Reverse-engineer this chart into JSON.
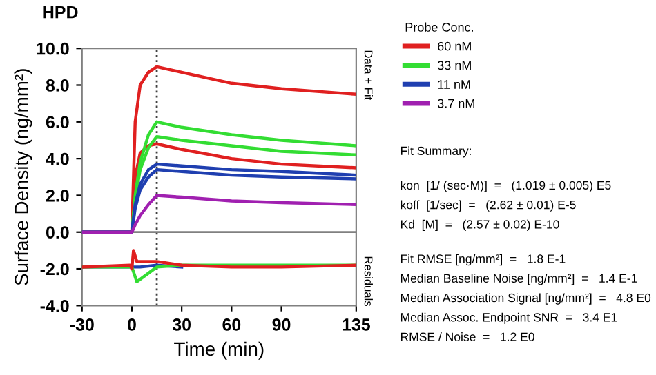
{
  "chart_data": {
    "type": "line",
    "title": "HPD",
    "xlabel": "Time (min)",
    "ylabel": "Surface Density (ng/mm²)",
    "legend_title": "Probe Conc.",
    "legend": "right",
    "grid": false,
    "marker": "none",
    "line_style": "solid",
    "xlim": [
      -30,
      135
    ],
    "xticks": [
      -30,
      0,
      30,
      60,
      90,
      135
    ],
    "ylim": [
      -4,
      10
    ],
    "yticks": [
      {
        "value": -4,
        "label": "-4.0"
      },
      {
        "value": -2,
        "label": "-2.0"
      },
      {
        "value": 0,
        "label": "0.0"
      },
      {
        "value": 2,
        "label": "2.0"
      },
      {
        "value": 4,
        "label": "4.0"
      },
      {
        "value": 6,
        "label": "6.0"
      },
      {
        "value": 8,
        "label": "8.0"
      },
      {
        "value": 10,
        "label": "10.0"
      }
    ],
    "x": [
      -30,
      -1,
      0,
      2,
      5,
      10,
      15,
      30,
      60,
      90,
      135
    ],
    "series": [
      {
        "name": "60 nM",
        "color": "#e02020",
        "values": [
          0,
          0,
          0,
          6.0,
          8.0,
          8.7,
          9.0,
          8.7,
          8.1,
          7.8,
          7.5
        ]
      },
      {
        "color": "#e02020",
        "values": [
          0,
          0,
          0,
          3.0,
          4.3,
          4.7,
          4.8,
          4.5,
          4.0,
          3.7,
          3.5
        ]
      },
      {
        "name": "33 nM",
        "color": "#33dd33",
        "values": [
          0,
          0,
          0,
          2.0,
          3.8,
          5.3,
          6.0,
          5.7,
          5.3,
          5.0,
          4.7
        ]
      },
      {
        "color": "#33dd33",
        "values": [
          0,
          0,
          0,
          1.8,
          3.4,
          4.6,
          5.2,
          5.0,
          4.7,
          4.4,
          4.2
        ]
      },
      {
        "name": "11 nM",
        "color": "#1f3fb0",
        "values": [
          0,
          0,
          0,
          1.5,
          2.6,
          3.4,
          3.7,
          3.6,
          3.4,
          3.3,
          3.1
        ]
      },
      {
        "color": "#1f3fb0",
        "values": [
          0,
          0,
          0,
          1.3,
          2.3,
          3.0,
          3.4,
          3.3,
          3.1,
          3.0,
          2.9
        ]
      },
      {
        "name": "3.7 nM",
        "color": "#a020b0",
        "values": [
          0,
          0,
          0,
          0.4,
          0.9,
          1.5,
          2.0,
          1.9,
          1.7,
          1.6,
          1.5
        ]
      },
      {
        "color": "#1f3fb0",
        "x": [
          -30,
          0,
          5,
          15,
          30
        ],
        "values": [
          -1.9,
          -1.9,
          -1.9,
          -1.8,
          -1.9
        ]
      },
      {
        "color": "#33dd33",
        "x": [
          -30,
          0,
          3,
          15,
          30,
          60,
          90,
          135
        ],
        "values": [
          -1.9,
          -1.9,
          -2.7,
          -1.9,
          -1.8,
          -1.8,
          -1.8,
          -1.8
        ]
      },
      {
        "color": "#e02020",
        "x": [
          -30,
          -1,
          0,
          1,
          3,
          15,
          30,
          60,
          90,
          135
        ],
        "values": [
          -1.9,
          -1.8,
          -2.0,
          -1.0,
          -1.6,
          -1.6,
          -1.8,
          -1.9,
          -1.9,
          -1.8
        ]
      }
    ],
    "ref_lines": [
      {
        "axis": "x",
        "value": 15,
        "color": "#404040",
        "line_style": "dotted"
      },
      {
        "axis": "y",
        "value": 0,
        "color": "#808080",
        "line_style": "solid"
      }
    ],
    "annotations": [
      "Data + Fit",
      "Residuals",
      "Fit Summary:",
      "kon  [1/ (sec·M)]  =   (1.019 ± 0.005) E5",
      "koff  [1/sec]  =   (2.62 ± 0.01) E-5",
      "Kd  [M]  =   (2.57 ± 0.02) E-10",
      "Fit RMSE [ng/mm²]  =   1.8 E-1",
      "Median Baseline Noise [ng/mm²]  =   1.4 E-1",
      "Median Association Signal [ng/mm²]  =   4.8 E0",
      "Median Assoc. Endpoint SNR  =   3.4 E1",
      "RMSE / Noise  =   1.2 E0"
    ]
  }
}
